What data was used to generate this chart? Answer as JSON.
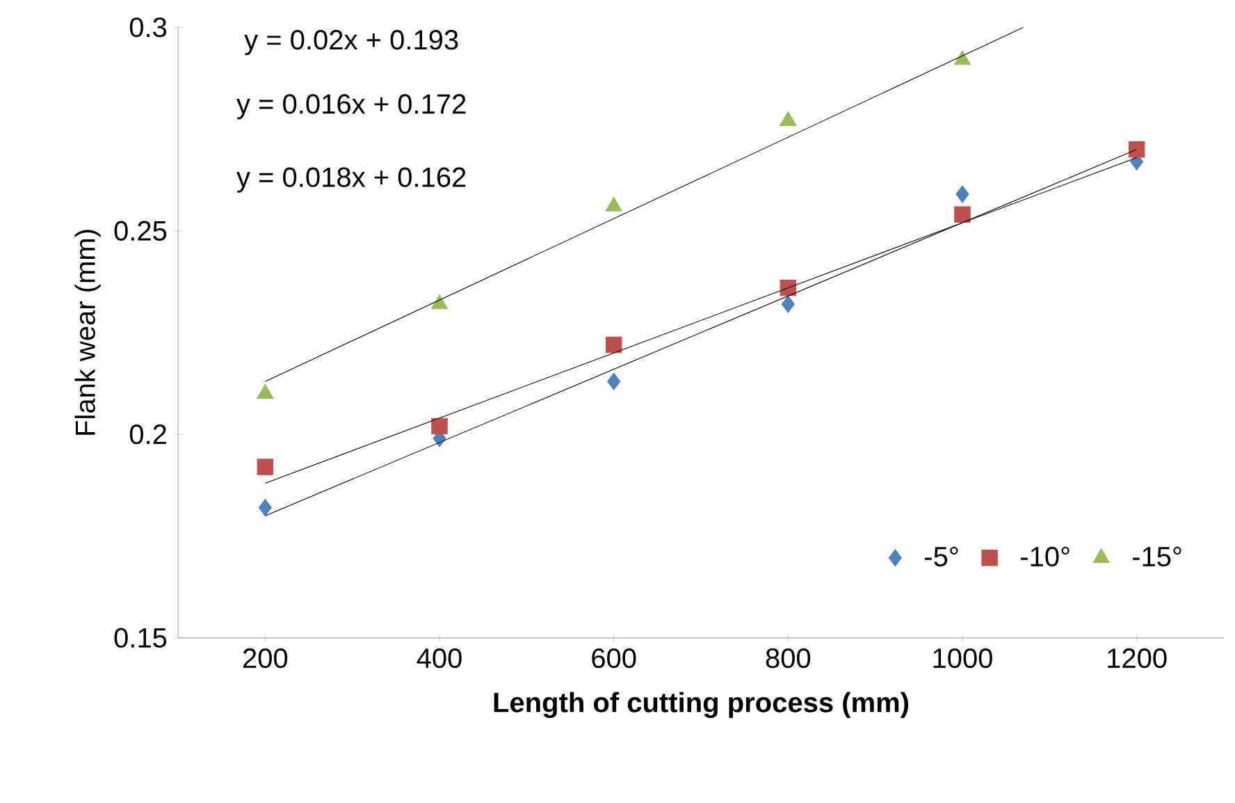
{
  "chart_data": {
    "type": "scatter",
    "xlabel": "Length of cutting process (mm)",
    "ylabel": "Flank wear (mm)",
    "xlim": [
      100,
      1300
    ],
    "xticks": [
      200,
      400,
      600,
      800,
      1000,
      1200
    ],
    "ylim": [
      0.15,
      0.3
    ],
    "yticks": [
      0.15,
      {
        "value": 0.2,
        "label": "0.2"
      },
      0.25,
      {
        "value": 0.3,
        "label": "0.3"
      }
    ],
    "x": [
      200,
      400,
      600,
      800,
      1000,
      1200
    ],
    "legend": "bottom right",
    "grid": false,
    "annotations": [
      "y = 0.02x + 0.193",
      "y = 0.016x + 0.172",
      "y = 0.018x + 0.162"
    ],
    "series": [
      {
        "name": "-5°",
        "color": "#4f81bd",
        "marker": "diamond",
        "values": [
          0.182,
          0.199,
          0.213,
          0.232,
          0.259,
          0.267
        ]
      },
      {
        "name": "-10°",
        "color": "#c0504d",
        "marker": "square",
        "values": [
          0.192,
          0.202,
          0.222,
          0.236,
          0.254,
          0.27
        ]
      },
      {
        "name": "-15°",
        "color": "#9bbb59",
        "marker": "triangle",
        "values": [
          0.21,
          0.232,
          0.256,
          0.277,
          0.292,
          null
        ]
      },
      {
        "type": "line",
        "color": "#000000",
        "marker": "none",
        "x": [
          200,
          1200
        ],
        "values": [
          0.18,
          0.27
        ]
      },
      {
        "type": "line",
        "color": "#000000",
        "marker": "none",
        "x": [
          200,
          1200
        ],
        "values": [
          0.188,
          0.268
        ]
      },
      {
        "type": "line",
        "color": "#000000",
        "marker": "none",
        "x": [
          200,
          1070
        ],
        "values": [
          0.213,
          0.3
        ]
      }
    ]
  }
}
